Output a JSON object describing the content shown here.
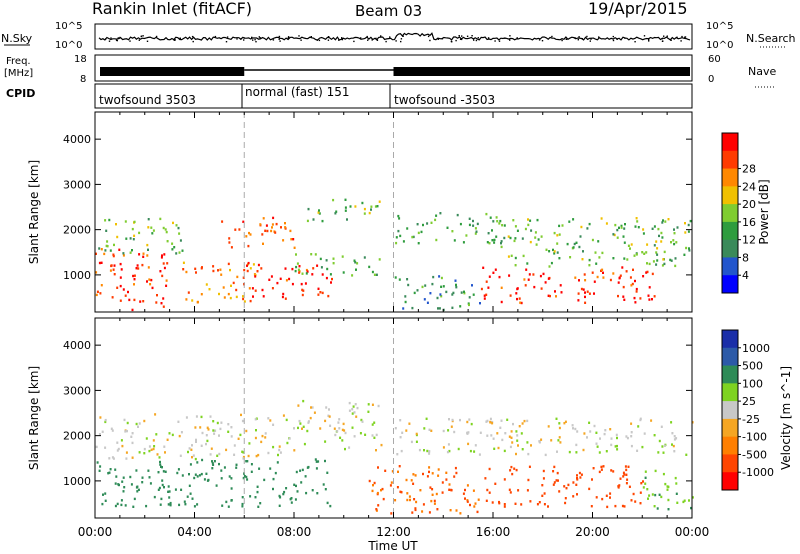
{
  "header": {
    "station": "Rankin Inlet (fitACF)",
    "beam": "Beam 03",
    "date": "19/Apr/2015"
  },
  "strip_labels": {
    "nsky": "N.Sky",
    "nsearch": "N.Search",
    "freq_line1": "Freq.",
    "freq_line2": "[MHz]",
    "nave": "Nave",
    "cpid": "CPID",
    "nsky_ticks": [
      "10^5",
      "10^0"
    ],
    "freq_ticks": [
      "18",
      "8"
    ],
    "nave_ticks": [
      "60",
      "0"
    ]
  },
  "cpid_segments": [
    {
      "label": "twofsound 3503",
      "start": 0,
      "end": 6
    },
    {
      "label": "normal (fast) 151",
      "start": 6,
      "end": 12
    },
    {
      "label": "twofsound -3503",
      "start": 12,
      "end": 24
    }
  ],
  "colors": {
    "power": [
      "#0000ff",
      "#2255cc",
      "#3a8a5a",
      "#2e9c3e",
      "#7fcc30",
      "#f0c000",
      "#ff8800",
      "#ff3b00",
      "#ff0000"
    ],
    "velocity": [
      "#1a2ea8",
      "#2c5aa8",
      "#2e8b57",
      "#7ed321",
      "#c8c8c8",
      "#f5a623",
      "#ff7f00",
      "#ff4500",
      "#ff0000"
    ]
  },
  "chart_data": [
    {
      "type": "heatmap",
      "name": "power",
      "ylabel": "Slant Range [km]",
      "xlabel": "",
      "x_ticks": [
        "00:00",
        "04:00",
        "08:00",
        "12:00",
        "16:00",
        "20:00",
        "00:00"
      ],
      "y_ticks": [
        1000,
        2000,
        3000,
        4000
      ],
      "xlim": [
        0,
        24
      ],
      "ylim": [
        180,
        4600
      ],
      "colorbar": {
        "title": "Power [dB]",
        "ticks": [
          4,
          8,
          12,
          16,
          20,
          24,
          28
        ],
        "range": [
          0,
          30
        ]
      },
      "regions": [
        {
          "t0": 0.0,
          "t1": 3.0,
          "r0": 250,
          "r1": 1600,
          "level": 26
        },
        {
          "t0": 0.0,
          "t1": 3.5,
          "r0": 1500,
          "r1": 2300,
          "level": 13
        },
        {
          "t0": 3.5,
          "t1": 6.5,
          "r0": 400,
          "r1": 1300,
          "level": 22
        },
        {
          "t0": 5.0,
          "t1": 8.0,
          "r0": 1600,
          "r1": 2300,
          "level": 25
        },
        {
          "t0": 6.0,
          "t1": 9.5,
          "r0": 500,
          "r1": 1300,
          "level": 28
        },
        {
          "t0": 8.0,
          "t1": 11.5,
          "r0": 1000,
          "r1": 1500,
          "level": 12
        },
        {
          "t0": 8.5,
          "t1": 11.5,
          "r0": 2200,
          "r1": 2700,
          "level": 14
        },
        {
          "t0": 12.0,
          "t1": 16.5,
          "r0": 1700,
          "r1": 2400,
          "level": 12
        },
        {
          "t0": 12.0,
          "t1": 15.5,
          "r0": 250,
          "r1": 1000,
          "level": 9
        },
        {
          "t0": 15.5,
          "t1": 22.5,
          "r0": 400,
          "r1": 1200,
          "level": 27
        },
        {
          "t0": 16.0,
          "t1": 24.0,
          "r0": 1200,
          "r1": 2300,
          "level": 13
        }
      ]
    },
    {
      "type": "heatmap",
      "name": "velocity",
      "ylabel": "Slant Range [km]",
      "xlabel": "Time UT",
      "x_ticks": [
        "00:00",
        "04:00",
        "08:00",
        "12:00",
        "16:00",
        "20:00",
        "00:00"
      ],
      "y_ticks": [
        1000,
        2000,
        3000,
        4000
      ],
      "xlim": [
        0,
        24
      ],
      "ylim": [
        180,
        4600
      ],
      "colorbar": {
        "title": "Velocity [m s^-1]",
        "ticks": [
          1000,
          500,
          100,
          25,
          -25,
          -100,
          -500,
          -1000
        ]
      },
      "regions": [
        {
          "t0": 0.0,
          "t1": 8.0,
          "r0": 1500,
          "r1": 2500,
          "level": 0
        },
        {
          "t0": 8.0,
          "t1": 11.5,
          "r0": 1700,
          "r1": 2800,
          "level": 0
        },
        {
          "t0": 0.0,
          "t1": 9.5,
          "r0": 450,
          "r1": 1500,
          "level": 150
        },
        {
          "t0": 11.0,
          "t1": 15.5,
          "r0": 300,
          "r1": 1400,
          "level": -300
        },
        {
          "t0": 15.5,
          "t1": 22.0,
          "r0": 450,
          "r1": 1350,
          "level": -400
        },
        {
          "t0": 12.0,
          "t1": 24.0,
          "r0": 1600,
          "r1": 2400,
          "level": 0
        },
        {
          "t0": 22.0,
          "t1": 24.0,
          "r0": 400,
          "r1": 1300,
          "level": 50
        }
      ]
    }
  ]
}
